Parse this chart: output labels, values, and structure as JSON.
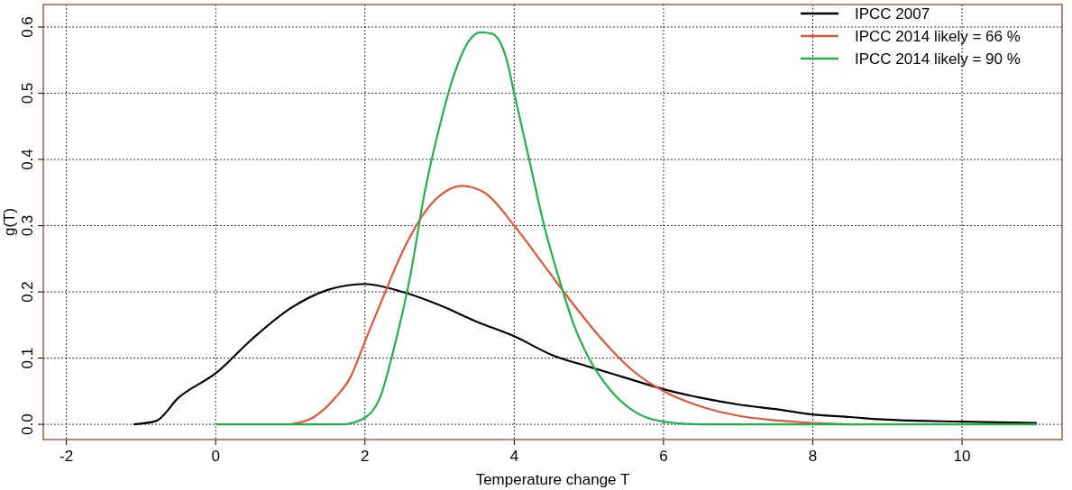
{
  "chart_data": {
    "type": "line",
    "xlabel": "Temperature change T",
    "ylabel": "g(T)",
    "xlim": [
      -2.31,
      11.34
    ],
    "ylim": [
      -0.023,
      0.634
    ],
    "xticks": [
      -2,
      0,
      2,
      4,
      6,
      8,
      10
    ],
    "yticks": [
      {
        "value": 0,
        "label": "0.0"
      },
      {
        "value": 0.1,
        "label": "0.1"
      },
      {
        "value": 0.2,
        "label": "0.2"
      },
      {
        "value": 0.3,
        "label": "0.3"
      },
      {
        "value": 0.4,
        "label": "0.4"
      },
      {
        "value": 0.5,
        "label": "0.5"
      },
      {
        "value": 0.6,
        "label": "0.6"
      }
    ],
    "grid": true,
    "legend": "top right",
    "line_style": "solid",
    "marker": "none",
    "series": [
      {
        "name": "IPCC 2007",
        "color": "#000000",
        "x": [
          -1.1,
          -0.8,
          -0.5,
          0,
          0.5,
          1,
          1.5,
          2,
          2.5,
          3,
          3.5,
          4,
          4.5,
          5,
          5.5,
          6,
          6.5,
          7,
          7.5,
          8,
          8.5,
          9,
          10,
          11
        ],
        "values": [
          0,
          0.005,
          0.04,
          0.077,
          0.13,
          0.175,
          0.203,
          0.212,
          0.2,
          0.18,
          0.155,
          0.133,
          0.105,
          0.087,
          0.07,
          0.053,
          0.04,
          0.03,
          0.023,
          0.015,
          0.011,
          0.007,
          0.004,
          0.002
        ]
      },
      {
        "name": "IPCC 2014 likely = 66 %",
        "color": "#e0563a",
        "x": [
          1,
          1.3,
          1.6,
          1.8,
          2,
          2.2,
          2.5,
          2.8,
          3,
          3.3,
          3.6,
          4,
          4.4,
          4.8,
          5.2,
          5.6,
          6,
          6.5,
          7,
          7.5,
          8,
          8.6
        ],
        "values": [
          0,
          0.01,
          0.04,
          0.07,
          0.125,
          0.18,
          0.26,
          0.32,
          0.345,
          0.36,
          0.35,
          0.3,
          0.24,
          0.18,
          0.125,
          0.08,
          0.05,
          0.027,
          0.013,
          0.006,
          0.002,
          0
        ]
      },
      {
        "name": "IPCC 2014 likely = 90 %",
        "color": "#22b24c",
        "x": [
          0,
          1.7,
          2,
          2.2,
          2.4,
          2.6,
          2.8,
          3,
          3.2,
          3.4,
          3.55,
          3.7,
          3.9,
          4,
          4.2,
          4.4,
          4.6,
          4.8,
          5,
          5.3,
          5.6,
          6,
          6.5,
          11
        ],
        "values": [
          0,
          0,
          0.01,
          0.04,
          0.12,
          0.22,
          0.35,
          0.45,
          0.53,
          0.58,
          0.592,
          0.59,
          0.55,
          0.5,
          0.4,
          0.3,
          0.22,
          0.15,
          0.1,
          0.05,
          0.02,
          0.004,
          0,
          0
        ]
      }
    ]
  }
}
